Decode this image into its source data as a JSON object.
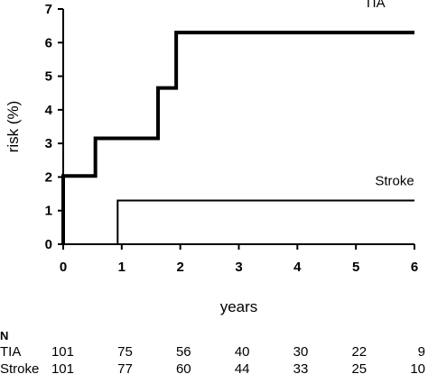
{
  "chart_data": {
    "type": "line",
    "step": true,
    "xlabel": "years",
    "ylabel": "risk (%)",
    "xlim": [
      0,
      6
    ],
    "ylim": [
      0,
      7
    ],
    "x_ticks": [
      "0",
      "1",
      "2",
      "3",
      "4",
      "5",
      "6"
    ],
    "y_ticks": [
      "0",
      "1",
      "2",
      "3",
      "4",
      "5",
      "6",
      "7"
    ],
    "grid": false,
    "series": [
      {
        "name": "TIA",
        "x": [
          0,
          0,
          0.55,
          0.55,
          1.62,
          1.62,
          1.93,
          1.93,
          6
        ],
        "y": [
          0,
          2.03,
          2.03,
          3.15,
          3.15,
          4.65,
          4.65,
          6.3,
          6.3
        ]
      },
      {
        "name": "Stroke",
        "x": [
          0.93,
          0.93,
          6
        ],
        "y": [
          0,
          1.3,
          1.3
        ]
      }
    ],
    "number_at_risk": {
      "header": "N",
      "rows": [
        {
          "label": "TIA",
          "values": [
            "101",
            "75",
            "56",
            "40",
            "30",
            "22",
            "9"
          ]
        },
        {
          "label": "Stroke",
          "values": [
            "101",
            "77",
            "60",
            "44",
            "33",
            "25",
            "10"
          ]
        }
      ]
    }
  }
}
